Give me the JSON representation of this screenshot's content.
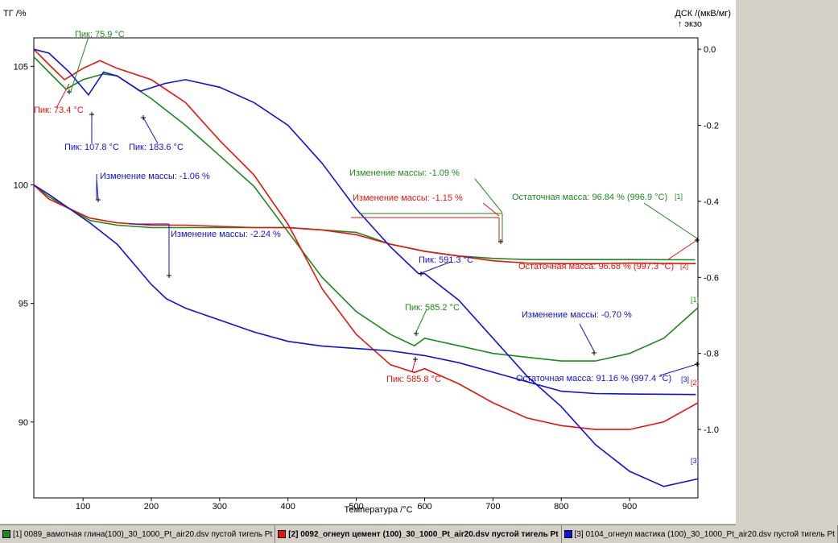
{
  "chart_data": {
    "type": "line",
    "x_label": "Температура /°C",
    "y_left_label": "ТГ /%",
    "y_right_label": "ДСК /(мкВ/мг)",
    "y_right_sublabel": "↑ экзо",
    "x_range": [
      28,
      1000
    ],
    "x_ticks": [
      100,
      200,
      300,
      400,
      500,
      600,
      700,
      800,
      900
    ],
    "y_left_range": [
      86.8,
      106.2
    ],
    "y_left_ticks": [
      90,
      95,
      100,
      105
    ],
    "y_right_range": [
      -1.18,
      0.03
    ],
    "y_right_ticks": [
      0.0,
      -0.2,
      -0.4,
      -0.6,
      -0.8,
      -1.0
    ],
    "y_right_tick_labels": [
      "0.0",
      "-0.2",
      "-0.4",
      "-0.6",
      "-0.8",
      "-1.0"
    ],
    "series": [
      {
        "id": "1",
        "color": "#1a8a1a",
        "tag": "[1]",
        "tg": [
          [
            28,
            100.0
          ],
          [
            50,
            99.5
          ],
          [
            80,
            99.0
          ],
          [
            110,
            98.5
          ],
          [
            150,
            98.3
          ],
          [
            200,
            98.2
          ],
          [
            250,
            98.2
          ],
          [
            300,
            98.2
          ],
          [
            350,
            98.2
          ],
          [
            400,
            98.2
          ],
          [
            450,
            98.1
          ],
          [
            500,
            98.0
          ],
          [
            550,
            97.5
          ],
          [
            600,
            97.2
          ],
          [
            650,
            97.0
          ],
          [
            700,
            96.9
          ],
          [
            750,
            96.85
          ],
          [
            800,
            96.85
          ],
          [
            850,
            96.85
          ],
          [
            900,
            96.85
          ],
          [
            996,
            96.84
          ]
        ],
        "dsc": [
          [
            28,
            -0.02
          ],
          [
            50,
            -0.06
          ],
          [
            75,
            -0.105
          ],
          [
            100,
            -0.08
          ],
          [
            130,
            -0.065
          ],
          [
            150,
            -0.07
          ],
          [
            200,
            -0.13
          ],
          [
            250,
            -0.2
          ],
          [
            300,
            -0.28
          ],
          [
            350,
            -0.36
          ],
          [
            400,
            -0.48
          ],
          [
            450,
            -0.6
          ],
          [
            500,
            -0.69
          ],
          [
            550,
            -0.75
          ],
          [
            585,
            -0.78
          ],
          [
            600,
            -0.76
          ],
          [
            650,
            -0.78
          ],
          [
            700,
            -0.8
          ],
          [
            750,
            -0.81
          ],
          [
            800,
            -0.82
          ],
          [
            850,
            -0.82
          ],
          [
            900,
            -0.8
          ],
          [
            950,
            -0.76
          ],
          [
            1000,
            -0.68
          ]
        ]
      },
      {
        "id": "2",
        "color": "#e8140c",
        "tag": "[2]",
        "tg": [
          [
            28,
            100.0
          ],
          [
            50,
            99.4
          ],
          [
            80,
            99.0
          ],
          [
            110,
            98.6
          ],
          [
            150,
            98.4
          ],
          [
            200,
            98.3
          ],
          [
            250,
            98.3
          ],
          [
            300,
            98.25
          ],
          [
            350,
            98.2
          ],
          [
            400,
            98.2
          ],
          [
            450,
            98.1
          ],
          [
            500,
            97.9
          ],
          [
            550,
            97.5
          ],
          [
            600,
            97.2
          ],
          [
            650,
            97.0
          ],
          [
            700,
            96.8
          ],
          [
            750,
            96.7
          ],
          [
            800,
            96.68
          ],
          [
            850,
            96.68
          ],
          [
            900,
            96.7
          ],
          [
            997,
            96.68
          ]
        ],
        "dsc": [
          [
            28,
            0.0
          ],
          [
            50,
            -0.04
          ],
          [
            73,
            -0.08
          ],
          [
            100,
            -0.05
          ],
          [
            125,
            -0.03
          ],
          [
            150,
            -0.05
          ],
          [
            200,
            -0.08
          ],
          [
            250,
            -0.14
          ],
          [
            300,
            -0.24
          ],
          [
            350,
            -0.33
          ],
          [
            400,
            -0.46
          ],
          [
            450,
            -0.63
          ],
          [
            500,
            -0.75
          ],
          [
            550,
            -0.83
          ],
          [
            585,
            -0.85
          ],
          [
            600,
            -0.84
          ],
          [
            650,
            -0.88
          ],
          [
            700,
            -0.93
          ],
          [
            750,
            -0.97
          ],
          [
            800,
            -0.99
          ],
          [
            850,
            -1.0
          ],
          [
            900,
            -1.0
          ],
          [
            950,
            -0.98
          ],
          [
            1000,
            -0.93
          ]
        ]
      },
      {
        "id": "3",
        "color": "#1010e0",
        "tag": "[3]",
        "tg": [
          [
            28,
            100.0
          ],
          [
            50,
            99.6
          ],
          [
            80,
            99.0
          ],
          [
            110,
            98.4
          ],
          [
            150,
            97.5
          ],
          [
            200,
            95.8
          ],
          [
            222,
            95.2
          ],
          [
            250,
            94.8
          ],
          [
            300,
            94.3
          ],
          [
            350,
            93.8
          ],
          [
            400,
            93.4
          ],
          [
            450,
            93.2
          ],
          [
            500,
            93.1
          ],
          [
            550,
            93.0
          ],
          [
            600,
            92.8
          ],
          [
            650,
            92.5
          ],
          [
            700,
            92.1
          ],
          [
            750,
            91.7
          ],
          [
            800,
            91.3
          ],
          [
            850,
            91.2
          ],
          [
            900,
            91.18
          ],
          [
            997,
            91.16
          ]
        ],
        "dsc": [
          [
            28,
            0.0
          ],
          [
            50,
            -0.01
          ],
          [
            80,
            -0.06
          ],
          [
            108,
            -0.12
          ],
          [
            130,
            -0.06
          ],
          [
            150,
            -0.07
          ],
          [
            184,
            -0.11
          ],
          [
            220,
            -0.09
          ],
          [
            250,
            -0.08
          ],
          [
            300,
            -0.1
          ],
          [
            350,
            -0.14
          ],
          [
            400,
            -0.2
          ],
          [
            450,
            -0.3
          ],
          [
            500,
            -0.42
          ],
          [
            550,
            -0.52
          ],
          [
            591,
            -0.59
          ],
          [
            600,
            -0.59
          ],
          [
            650,
            -0.66
          ],
          [
            700,
            -0.76
          ],
          [
            750,
            -0.86
          ],
          [
            800,
            -0.94
          ],
          [
            850,
            -1.04
          ],
          [
            900,
            -1.11
          ],
          [
            950,
            -1.15
          ],
          [
            1000,
            -1.13
          ]
        ]
      }
    ],
    "annotations": [
      {
        "id": "peak-g-76",
        "text": "Пик: 75.9 °C",
        "color": "#1a8a1a"
      },
      {
        "id": "peak-r-73",
        "text": "Пик: 73.4 °C",
        "color": "#e8140c"
      },
      {
        "id": "peak-b-108",
        "text": "Пик: 107.8 °C",
        "color": "#1010e0"
      },
      {
        "id": "peak-b-184",
        "text": "Пик: 183.6 °C",
        "color": "#1010e0"
      },
      {
        "id": "mass-b-106",
        "text": "Изменение массы: -1.06 %",
        "color": "#1010e0"
      },
      {
        "id": "mass-b-224",
        "text": "Изменение массы: -2.24 %",
        "color": "#1010e0"
      },
      {
        "id": "mass-g-109",
        "text": "Изменение массы: -1.09 %",
        "color": "#1a8a1a"
      },
      {
        "id": "mass-r-115",
        "text": "Изменение массы: -1.15 %",
        "color": "#e8140c"
      },
      {
        "id": "res-g",
        "text": "Остаточная масса: 96.84 % (996.9 °C)",
        "color": "#1a8a1a"
      },
      {
        "id": "res-r",
        "text": "Остаточная масса: 96.68 % (997.3 °C)",
        "color": "#e8140c"
      },
      {
        "id": "peak-b-591",
        "text": "Пик: 591.3 °C",
        "color": "#1010e0"
      },
      {
        "id": "peak-g-585",
        "text": "Пик: 585.2 °C",
        "color": "#1a8a1a"
      },
      {
        "id": "peak-r-586",
        "text": "Пик: 585.8 °C",
        "color": "#e8140c"
      },
      {
        "id": "mass-b-070",
        "text": "Изменение массы: -0.70 %",
        "color": "#1010e0"
      },
      {
        "id": "res-b",
        "text": "Остаточная масса: 91.16 % (997.4 °C)",
        "color": "#1010e0"
      },
      {
        "id": "tag-1a",
        "text": "[1]",
        "color": "#1a8a1a"
      },
      {
        "id": "tag-2a",
        "text": "[2]",
        "color": "#e8140c"
      },
      {
        "id": "tag-1b",
        "text": "[1]",
        "color": "#1a8a1a"
      },
      {
        "id": "tag-3a",
        "text": "[3]",
        "color": "#1010e0"
      },
      {
        "id": "tag-2b",
        "text": "[2]",
        "color": "#e8140c"
      },
      {
        "id": "tag-3b",
        "text": "[3]",
        "color": "#1010e0"
      }
    ]
  },
  "status_bar": {
    "tabs": [
      {
        "label": "[1] 0089_вамотная глина(100)_30_1000_Pt_air20.dsv",
        "sub": "пустой тигель Pt",
        "color": "#1a8a1a",
        "active": false
      },
      {
        "label": "[2] 0092_огнеуп цемент (100)_30_1000_Pt_air20.dsv",
        "sub": "пустой тигель Pt",
        "color": "#e8140c",
        "active": true
      },
      {
        "label": "[3] 0104_огнеуп мастика (100)_30_1000_Pt_air20.dsv",
        "sub": "пустой тигель Pt",
        "color": "#1010e0",
        "active": false
      }
    ]
  }
}
